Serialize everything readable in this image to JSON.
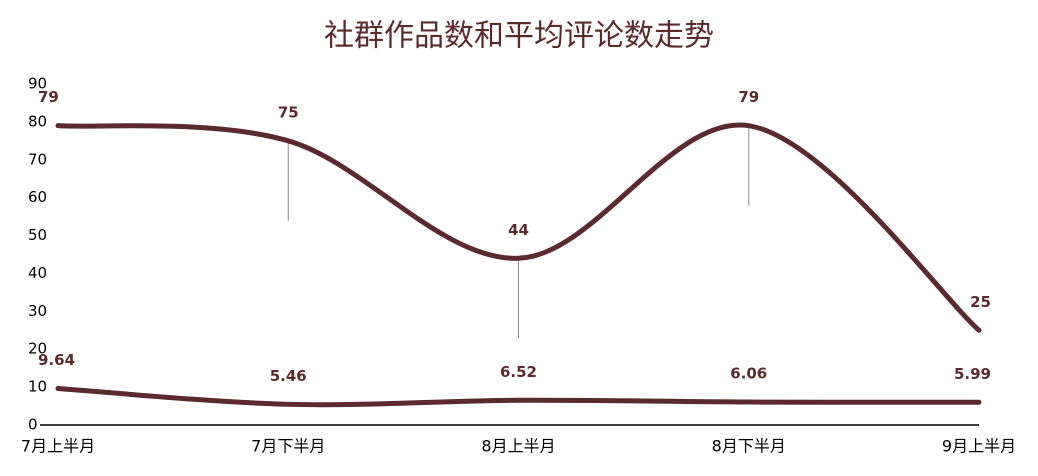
{
  "chart_data": {
    "type": "line",
    "title": "社群作品数和平均评论数走势",
    "categories": [
      "7月上半月",
      "7月下半月",
      "8月上半月",
      "8月下半月",
      "9月上半月"
    ],
    "series": [
      {
        "color": "#5b2a2e",
        "values": [
          79,
          75,
          44,
          79,
          25
        ]
      },
      {
        "color": "#5b2a2e",
        "values": [
          9.64,
          5.46,
          6.52,
          6.06,
          5.99
        ]
      }
    ],
    "ylim": [
      0,
      90
    ],
    "yticks": [
      0,
      10,
      20,
      30,
      40,
      50,
      60,
      70,
      80,
      90
    ],
    "grid": false,
    "smooth": true
  }
}
